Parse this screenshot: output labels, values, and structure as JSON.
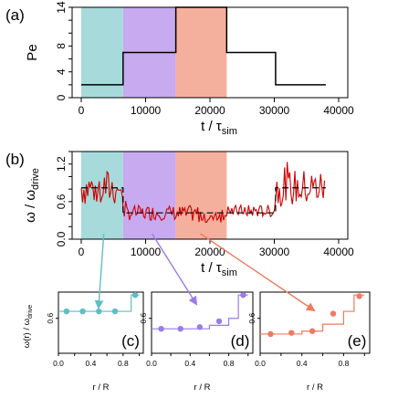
{
  "chart_data": [
    {
      "id": "a",
      "type": "line",
      "panel_label": "(a)",
      "xlabel": "t / τ",
      "xlabel_sub": "sim",
      "ylabel": "Pe",
      "xlim": [
        0,
        40000
      ],
      "ylim": [
        0,
        14
      ],
      "xticks": [
        0,
        10000,
        20000,
        30000,
        40000
      ],
      "yticks": [
        0,
        4,
        8,
        14
      ],
      "yticks_labeled": [
        0,
        4,
        8,
        14
      ],
      "regions": [
        {
          "from": 0,
          "to": 6500,
          "color": "#a6dadb"
        },
        {
          "from": 6500,
          "to": 14700,
          "color": "#c7aaf0"
        },
        {
          "from": 14700,
          "to": 22600,
          "color": "#f5b09d"
        }
      ],
      "series": [
        {
          "color": "#000000",
          "x": [
            0,
            6500,
            6500,
            14700,
            14700,
            22600,
            22600,
            30200,
            30200,
            38000
          ],
          "y": [
            2,
            2,
            7,
            7,
            14,
            14,
            7,
            7,
            2,
            2
          ]
        }
      ]
    },
    {
      "id": "b",
      "type": "line",
      "panel_label": "(b)",
      "xlabel": "t / τ",
      "xlabel_sub": "sim",
      "ylabel": "ω / ω",
      "ylabel_sub": "drive",
      "xlim": [
        0,
        40000
      ],
      "ylim": [
        0,
        1.4
      ],
      "xticks": [
        0,
        10000,
        20000,
        30000,
        40000
      ],
      "yticks": [
        0.0,
        0.6,
        1.2
      ],
      "regions": [
        {
          "from": 0,
          "to": 6500,
          "color": "#a6dadb"
        },
        {
          "from": 6500,
          "to": 14700,
          "color": "#c7aaf0"
        },
        {
          "from": 14700,
          "to": 22600,
          "color": "#f5b09d"
        }
      ],
      "dashed_mean": {
        "color": "#000000",
        "x": [
          0,
          6500,
          6500,
          22600,
          22600,
          30200,
          30200,
          38000
        ],
        "y": [
          0.82,
          0.82,
          0.42,
          0.42,
          0.42,
          0.42,
          0.82,
          0.82
        ]
      },
      "noisy_series": {
        "color": "#cc0000",
        "segments": [
          {
            "from": 0,
            "to": 6500,
            "mean": 0.82,
            "amp": 0.3
          },
          {
            "from": 6500,
            "to": 14700,
            "mean": 0.42,
            "amp": 0.12
          },
          {
            "from": 14700,
            "to": 22600,
            "mean": 0.4,
            "amp": 0.14
          },
          {
            "from": 22600,
            "to": 30200,
            "mean": 0.45,
            "amp": 0.1
          },
          {
            "from": 30200,
            "to": 38000,
            "mean": 0.82,
            "amp": 0.3
          }
        ],
        "dt": 200
      }
    },
    {
      "id": "c",
      "type": "line",
      "panel_label": "(c)",
      "xlabel": "r / R",
      "ylabel": "ω(r) / ω",
      "ylabel_sub": "drive",
      "xlim": [
        0,
        1.05
      ],
      "ylim": [
        0,
        1.05
      ],
      "xticks": [
        0.0,
        0.4,
        0.8
      ],
      "xticks_all": [
        0.0,
        0.2,
        0.4,
        0.6,
        0.8,
        1.0
      ],
      "yticks": [
        0.6
      ],
      "color": "#5dbec4",
      "steps": [
        0,
        0.2,
        0.4,
        0.6,
        0.8,
        0.9,
        1.0
      ],
      "step_values": [
        0.72,
        0.72,
        0.72,
        0.72,
        0.72,
        1.0
      ],
      "points": {
        "x": [
          0.1,
          0.3,
          0.5,
          0.7,
          0.95
        ],
        "y": [
          0.72,
          0.72,
          0.72,
          0.72,
          1.0
        ]
      }
    },
    {
      "id": "d",
      "type": "line",
      "panel_label": "(d)",
      "xlabel": "r / R",
      "xlim": [
        0,
        1.05
      ],
      "ylim": [
        0,
        1.05
      ],
      "xticks": [
        0.0,
        0.4,
        0.8
      ],
      "xticks_all": [
        0.0,
        0.2,
        0.4,
        0.6,
        0.8,
        1.0
      ],
      "yticks": [
        0.6
      ],
      "color": "#9b7bea",
      "steps": [
        0,
        0.2,
        0.4,
        0.6,
        0.8,
        0.9,
        1.0
      ],
      "step_values": [
        0.42,
        0.42,
        0.42,
        0.48,
        0.6,
        1.0
      ],
      "points": {
        "x": [
          0.1,
          0.3,
          0.5,
          0.7,
          0.95
        ],
        "y": [
          0.42,
          0.42,
          0.45,
          0.55,
          1.0
        ]
      }
    },
    {
      "id": "e",
      "type": "line",
      "panel_label": "(e)",
      "xlabel": "r / R",
      "xlim": [
        0,
        1.05
      ],
      "ylim": [
        0,
        1.05
      ],
      "xticks": [
        0.0,
        0.4,
        0.8
      ],
      "xticks_all": [
        0.0,
        0.2,
        0.4,
        0.6,
        0.8,
        1.0
      ],
      "yticks": [
        0.6
      ],
      "color": "#ee7b5e",
      "steps": [
        0,
        0.2,
        0.4,
        0.6,
        0.8,
        0.9,
        1.0
      ],
      "step_values": [
        0.33,
        0.33,
        0.38,
        0.5,
        0.72,
        1.0
      ],
      "points": {
        "x": [
          0.1,
          0.3,
          0.5,
          0.7,
          0.95
        ],
        "y": [
          0.33,
          0.35,
          0.38,
          0.68,
          0.98
        ]
      }
    }
  ],
  "arrows": [
    {
      "from_panel": "b",
      "from_x": 3500,
      "to_panel": "c",
      "color": "#5dbec4"
    },
    {
      "from_panel": "b",
      "from_x": 11000,
      "to_panel": "d",
      "color": "#9b7bea"
    },
    {
      "from_panel": "b",
      "from_x": 18500,
      "to_panel": "e",
      "color": "#ee7b5e"
    }
  ]
}
